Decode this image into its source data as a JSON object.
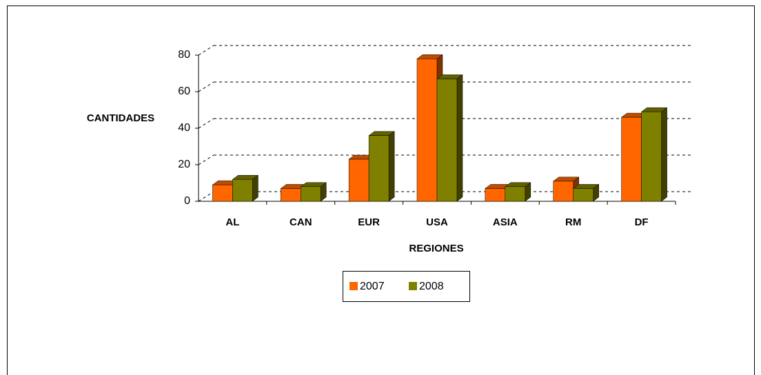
{
  "chart_data": {
    "type": "bar3d",
    "categories": [
      "AL",
      "CAN",
      "EUR",
      "USA",
      "ASIA",
      "RM",
      "DF"
    ],
    "series": [
      {
        "name": "2007",
        "color": "#ff6600",
        "values": [
          9,
          7,
          23,
          78,
          7,
          11,
          46
        ]
      },
      {
        "name": "2008",
        "color": "#808000",
        "values": [
          12,
          8,
          36,
          67,
          8,
          7,
          49
        ]
      }
    ],
    "xlabel": "REGIONES",
    "ylabel": "CANTIDADES",
    "ylim": [
      0,
      80
    ],
    "yticks": [
      0,
      20,
      40,
      60,
      80
    ],
    "grid": true,
    "legend": "bottom"
  }
}
